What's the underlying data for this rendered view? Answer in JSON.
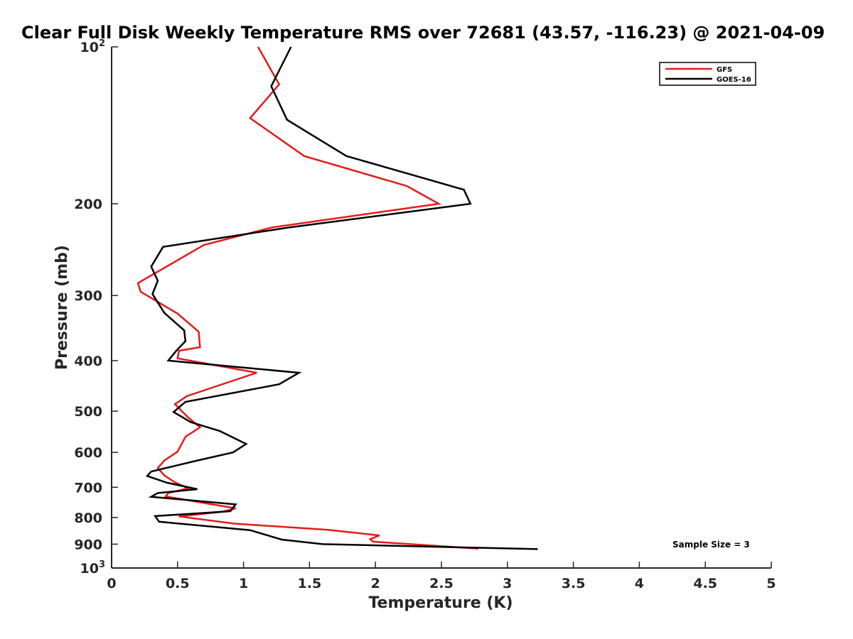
{
  "chart_data": {
    "type": "line",
    "title": "Clear Full Disk Weekly Temperature RMS over 72681 (43.57, -116.23) @ 2021-04-09",
    "xlabel": "Temperature (K)",
    "ylabel": "Pressure (mb)",
    "xlim": [
      0,
      5
    ],
    "ylim": [
      100,
      1000
    ],
    "y_scale": "log",
    "y_reversed": true,
    "grid": false,
    "legend_position": "top-right",
    "x_ticks": [
      "0",
      "0.5",
      "1",
      "1.5",
      "2",
      "2.5",
      "3",
      "3.5",
      "4",
      "4.5",
      "5"
    ],
    "y_ticks": [
      {
        "value": 100,
        "label": "10",
        "sup": "2"
      },
      {
        "value": 200,
        "label": "200",
        "sup": ""
      },
      {
        "value": 300,
        "label": "300",
        "sup": ""
      },
      {
        "value": 400,
        "label": "400",
        "sup": ""
      },
      {
        "value": 500,
        "label": "500",
        "sup": ""
      },
      {
        "value": 600,
        "label": "600",
        "sup": ""
      },
      {
        "value": 700,
        "label": "700",
        "sup": ""
      },
      {
        "value": 800,
        "label": "800",
        "sup": ""
      },
      {
        "value": 900,
        "label": "900",
        "sup": ""
      },
      {
        "value": 1000,
        "label": "10",
        "sup": "3"
      }
    ],
    "series": [
      {
        "name": "GFS",
        "color": "#e41a1c",
        "points": [
          [
            1.11,
            100
          ],
          [
            1.27,
            118
          ],
          [
            1.05,
            137
          ],
          [
            1.46,
            162
          ],
          [
            2.24,
            185
          ],
          [
            2.48,
            200
          ],
          [
            1.22,
            222
          ],
          [
            0.7,
            240
          ],
          [
            0.2,
            284
          ],
          [
            0.22,
            295
          ],
          [
            0.5,
            325
          ],
          [
            0.66,
            352
          ],
          [
            0.67,
            377
          ],
          [
            0.51,
            383
          ],
          [
            0.5,
            396
          ],
          [
            1.1,
            422
          ],
          [
            0.57,
            468
          ],
          [
            0.48,
            485
          ],
          [
            0.58,
            514
          ],
          [
            0.67,
            537
          ],
          [
            0.56,
            560
          ],
          [
            0.5,
            598
          ],
          [
            0.4,
            622
          ],
          [
            0.35,
            643
          ],
          [
            0.4,
            664
          ],
          [
            0.48,
            685
          ],
          [
            0.58,
            703
          ],
          [
            0.43,
            718
          ],
          [
            0.41,
            729
          ],
          [
            0.75,
            754
          ],
          [
            0.94,
            768
          ],
          [
            0.84,
            780
          ],
          [
            0.51,
            796
          ],
          [
            0.93,
            822
          ],
          [
            1.64,
            845
          ],
          [
            2.03,
            866
          ],
          [
            1.96,
            880
          ],
          [
            1.98,
            890
          ],
          [
            2.78,
            918
          ]
        ]
      },
      {
        "name": "GOES-16",
        "color": "#000000",
        "points": [
          [
            1.36,
            100
          ],
          [
            1.21,
            119
          ],
          [
            1.33,
            138
          ],
          [
            1.78,
            162
          ],
          [
            2.67,
            188
          ],
          [
            2.72,
            200
          ],
          [
            1.35,
            222
          ],
          [
            0.39,
            242
          ],
          [
            0.3,
            264
          ],
          [
            0.35,
            281
          ],
          [
            0.31,
            298
          ],
          [
            0.4,
            324
          ],
          [
            0.55,
            350
          ],
          [
            0.56,
            367
          ],
          [
            0.49,
            383
          ],
          [
            0.43,
            400
          ],
          [
            1.42,
            422
          ],
          [
            1.27,
            444
          ],
          [
            0.56,
            480
          ],
          [
            0.47,
            502
          ],
          [
            0.6,
            525
          ],
          [
            0.82,
            546
          ],
          [
            1.02,
            578
          ],
          [
            0.92,
            600
          ],
          [
            0.65,
            622
          ],
          [
            0.3,
            653
          ],
          [
            0.27,
            666
          ],
          [
            0.42,
            686
          ],
          [
            0.65,
            706
          ],
          [
            0.35,
            718
          ],
          [
            0.3,
            730
          ],
          [
            0.94,
            755
          ],
          [
            0.9,
            778
          ],
          [
            0.33,
            795
          ],
          [
            0.36,
            815
          ],
          [
            1.05,
            846
          ],
          [
            1.29,
            882
          ],
          [
            1.6,
            900
          ],
          [
            3.23,
            920
          ]
        ]
      }
    ],
    "annotation": "Sample Size = 3"
  }
}
